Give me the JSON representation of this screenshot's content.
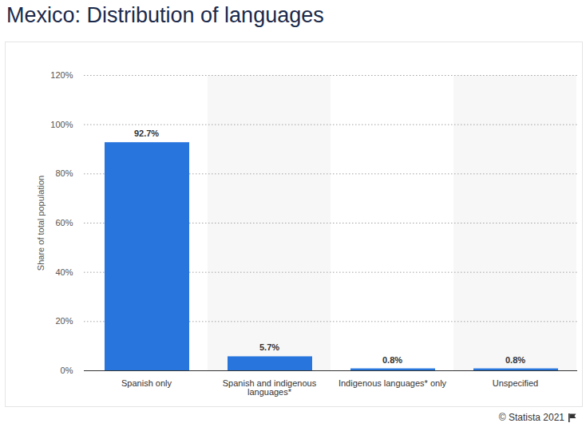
{
  "chart_data": {
    "type": "bar",
    "title": "Mexico: Distribution of languages",
    "y_label": "Share of total population",
    "categories": [
      "Spanish only",
      "Spanish and indigenous languages*",
      "Indigenous languages* only",
      "Unspecified"
    ],
    "values": [
      92.7,
      5.7,
      0.8,
      0.8
    ],
    "value_labels": [
      "92.7%",
      "5.7%",
      "0.8%",
      "0.8%"
    ],
    "color": "#2876dd",
    "ylim": [
      0,
      120
    ],
    "yticks": [
      {
        "value": 0,
        "label": "0%"
      },
      {
        "value": 20,
        "label": "20%"
      },
      {
        "value": 40,
        "label": "40%"
      },
      {
        "value": 60,
        "label": "60%"
      },
      {
        "value": 80,
        "label": "80%"
      },
      {
        "value": 100,
        "label": "100%"
      },
      {
        "value": 120,
        "label": "120%"
      }
    ],
    "grid": true,
    "data_labels": true,
    "caption": "© Statista 2021"
  }
}
